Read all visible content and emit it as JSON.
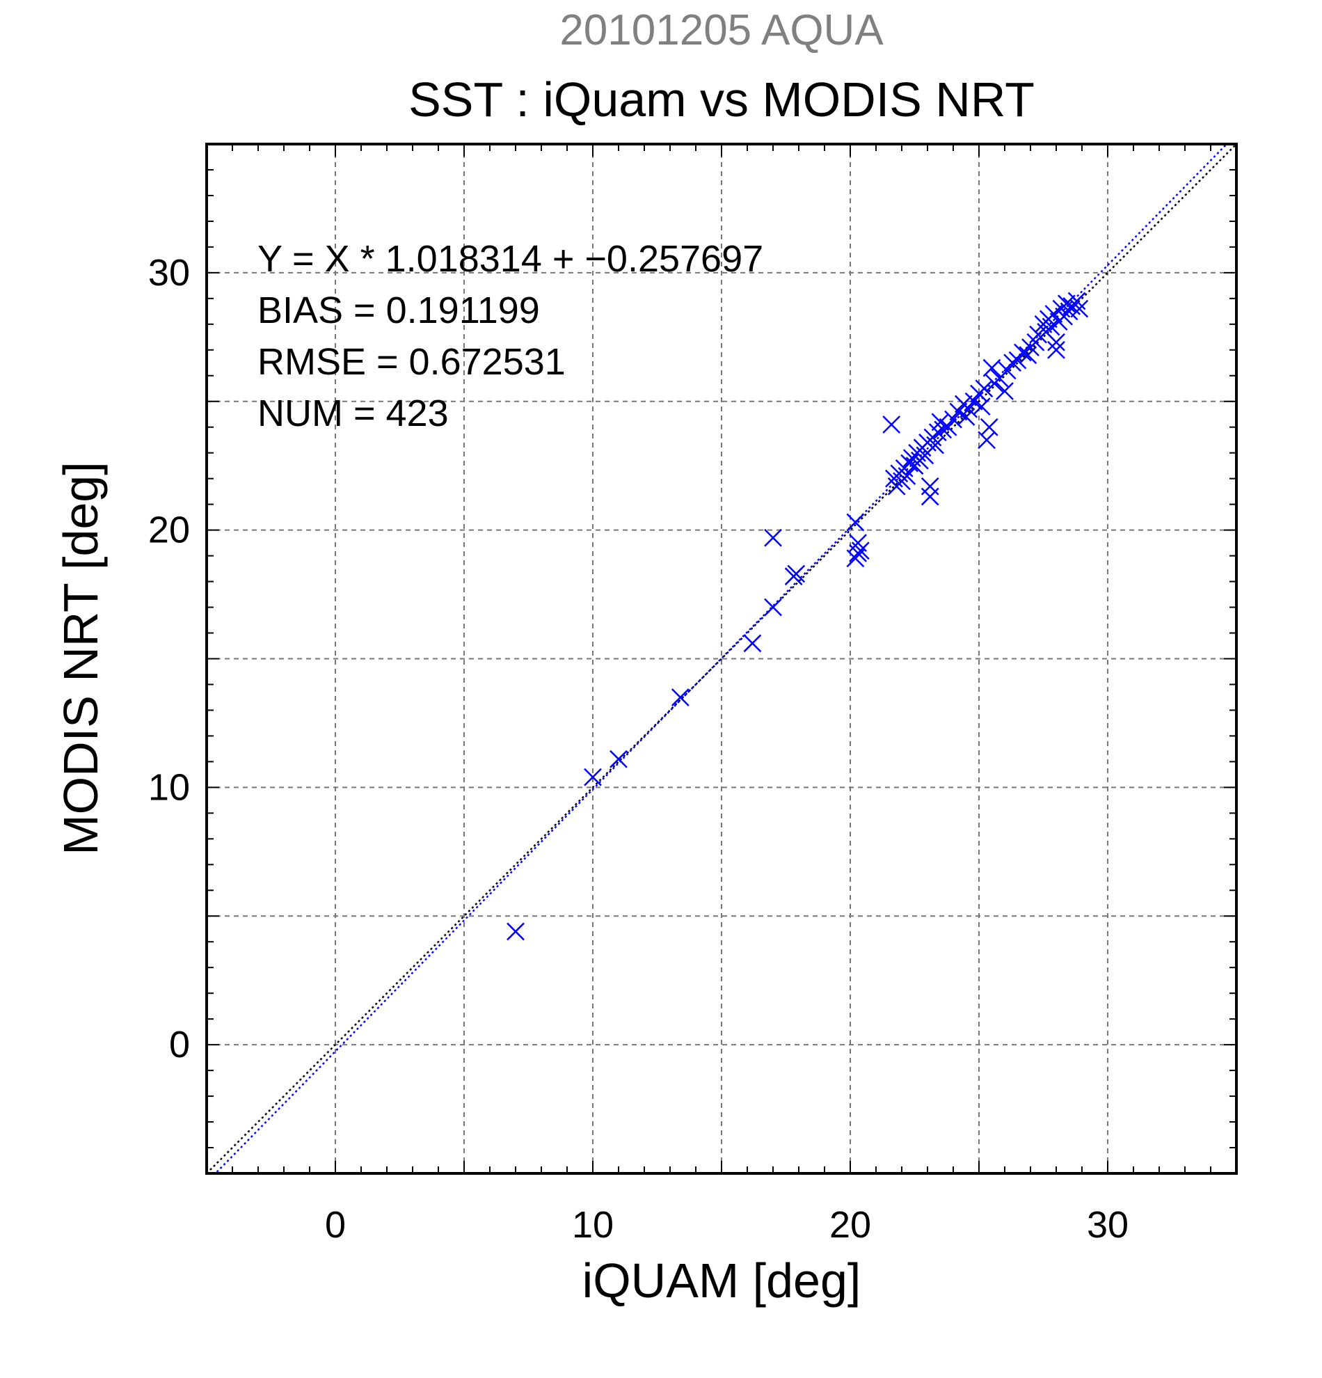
{
  "chart_data": {
    "type": "scatter",
    "supertitle": "20101205 AQUA",
    "title": "SST : iQuam vs MODIS NRT",
    "xlabel": "iQUAM [deg]",
    "ylabel": "MODIS NRT [deg]",
    "xlim": [
      -5,
      35
    ],
    "ylim": [
      -5,
      35
    ],
    "xticks": [
      0,
      10,
      20,
      30
    ],
    "yticks": [
      0,
      10,
      20,
      30
    ],
    "grid": true,
    "annotations": [
      "Y = X * 1.018314 + −0.257697",
      "BIAS = 0.191199",
      "RMSE = 0.672531",
      "NUM = 423"
    ],
    "fit": {
      "slope": 1.018314,
      "intercept": -0.257697
    },
    "colors": {
      "points": "#0000ff",
      "fit_line": "#0000ff",
      "one_to_one": "#000000",
      "grid": "#777777",
      "supertitle": "#808080"
    },
    "series": [
      {
        "marker": "x",
        "points": [
          [
            7.0,
            4.4
          ],
          [
            10.0,
            10.4
          ],
          [
            11.0,
            11.1
          ],
          [
            13.4,
            13.5
          ],
          [
            16.2,
            15.6
          ],
          [
            17.0,
            17.0
          ],
          [
            17.0,
            19.7
          ],
          [
            17.8,
            18.2
          ],
          [
            17.9,
            18.3
          ],
          [
            20.2,
            20.3
          ],
          [
            20.3,
            19.5
          ],
          [
            20.3,
            19.1
          ],
          [
            20.4,
            19.2
          ],
          [
            20.2,
            18.9
          ],
          [
            21.6,
            24.1
          ],
          [
            21.7,
            22.0
          ],
          [
            21.8,
            21.7
          ],
          [
            21.9,
            22.2
          ],
          [
            22.0,
            21.9
          ],
          [
            22.1,
            22.4
          ],
          [
            22.2,
            22.1
          ],
          [
            22.3,
            22.6
          ],
          [
            22.4,
            22.8
          ],
          [
            22.5,
            22.5
          ],
          [
            22.6,
            23.0
          ],
          [
            22.7,
            22.7
          ],
          [
            22.8,
            23.2
          ],
          [
            22.9,
            22.9
          ],
          [
            23.0,
            23.4
          ],
          [
            23.1,
            21.3
          ],
          [
            23.1,
            21.7
          ],
          [
            23.2,
            23.6
          ],
          [
            23.3,
            23.3
          ],
          [
            23.4,
            23.8
          ],
          [
            23.5,
            24.2
          ],
          [
            23.6,
            23.9
          ],
          [
            23.8,
            24.0
          ],
          [
            24.0,
            24.3
          ],
          [
            24.2,
            24.6
          ],
          [
            24.4,
            24.9
          ],
          [
            24.5,
            24.4
          ],
          [
            24.6,
            24.7
          ],
          [
            24.8,
            25.0
          ],
          [
            25.0,
            25.3
          ],
          [
            25.1,
            24.8
          ],
          [
            25.2,
            25.5
          ],
          [
            25.3,
            23.5
          ],
          [
            25.4,
            24.0
          ],
          [
            25.5,
            26.3
          ],
          [
            25.6,
            25.7
          ],
          [
            25.8,
            25.9
          ],
          [
            26.0,
            25.4
          ],
          [
            26.1,
            26.2
          ],
          [
            26.3,
            26.5
          ],
          [
            26.5,
            26.6
          ],
          [
            26.7,
            26.9
          ],
          [
            26.9,
            26.8
          ],
          [
            27.0,
            27.1
          ],
          [
            27.2,
            27.3
          ],
          [
            27.3,
            27.6
          ],
          [
            27.5,
            28.0
          ],
          [
            27.6,
            27.7
          ],
          [
            27.7,
            28.2
          ],
          [
            27.8,
            27.9
          ],
          [
            27.9,
            28.4
          ],
          [
            28.0,
            27.3
          ],
          [
            28.0,
            27.0
          ],
          [
            28.1,
            28.1
          ],
          [
            28.2,
            28.6
          ],
          [
            28.3,
            28.3
          ],
          [
            28.4,
            28.8
          ],
          [
            28.5,
            28.5
          ],
          [
            28.6,
            28.7
          ],
          [
            28.8,
            28.9
          ],
          [
            28.9,
            28.6
          ]
        ]
      }
    ]
  }
}
